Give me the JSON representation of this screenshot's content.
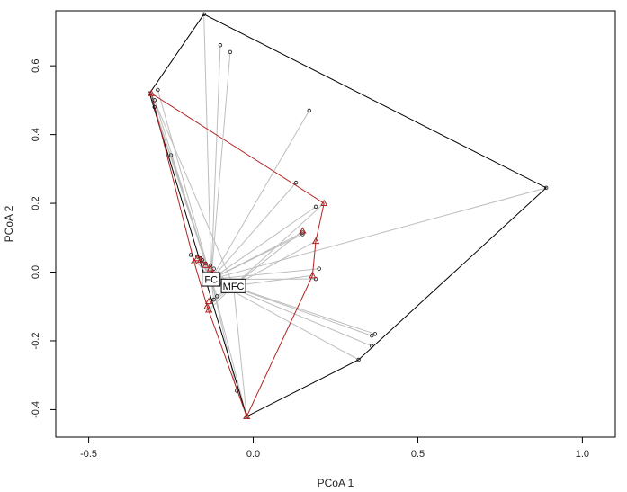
{
  "chart_data": {
    "type": "scatter",
    "xlabel": "PCoA 1",
    "ylabel": "PCoA 2",
    "xlim": [
      -0.6,
      1.1
    ],
    "ylim": [
      -0.48,
      0.76
    ],
    "grid": false,
    "x_ticks": [
      -0.5,
      0.0,
      0.5,
      1.0
    ],
    "x_tick_labels": [
      "-0.5",
      "0.0",
      "0.5",
      "1.0"
    ],
    "y_ticks": [
      -0.4,
      -0.2,
      0.0,
      0.2,
      0.4,
      0.6
    ],
    "y_tick_labels": [
      "-0.4",
      "-0.2",
      "0.0",
      "0.2",
      "0.4",
      "0.6"
    ],
    "series": [
      {
        "name": "FC",
        "color": "#000000",
        "centroid": [
          -0.128,
          -0.021
        ],
        "hull": [
          [
            -0.15,
            0.75
          ],
          [
            0.89,
            0.245
          ],
          [
            0.32,
            -0.255
          ],
          [
            -0.02,
            -0.42
          ],
          [
            -0.315,
            0.52
          ]
        ],
        "points": [
          [
            -0.15,
            0.75
          ],
          [
            -0.1,
            0.66
          ],
          [
            -0.07,
            0.64
          ],
          [
            0.17,
            0.47
          ],
          [
            -0.315,
            0.52
          ],
          [
            -0.29,
            0.53
          ],
          [
            -0.3,
            0.5
          ],
          [
            -0.3,
            0.48
          ],
          [
            -0.25,
            0.34
          ],
          [
            0.13,
            0.26
          ],
          [
            0.19,
            0.19
          ],
          [
            0.15,
            0.115
          ],
          [
            0.15,
            0.11
          ],
          [
            0.2,
            0.01
          ],
          [
            0.19,
            -0.02
          ],
          [
            0.89,
            0.245
          ],
          [
            0.37,
            -0.18
          ],
          [
            0.36,
            -0.185
          ],
          [
            0.36,
            -0.215
          ],
          [
            0.32,
            -0.255
          ],
          [
            -0.05,
            -0.345
          ],
          [
            -0.02,
            -0.42
          ],
          [
            -0.17,
            0.045
          ],
          [
            -0.16,
            0.04
          ],
          [
            -0.155,
            0.035
          ],
          [
            -0.145,
            0.025
          ],
          [
            -0.13,
            0.02
          ],
          [
            -0.12,
            0.01
          ],
          [
            -0.19,
            0.05
          ],
          [
            -0.12,
            -0.08
          ],
          [
            -0.11,
            -0.07
          ]
        ]
      },
      {
        "name": "MFC",
        "color": "#b22222",
        "centroid": [
          -0.06,
          -0.04
        ],
        "hull": [
          [
            -0.31,
            0.52
          ],
          [
            0.215,
            0.2
          ],
          [
            0.19,
            0.09
          ],
          [
            0.18,
            -0.01
          ],
          [
            -0.02,
            -0.42
          ],
          [
            -0.14,
            -0.1
          ],
          [
            -0.18,
            0.03
          ]
        ],
        "points": [
          [
            -0.31,
            0.52
          ],
          [
            0.215,
            0.2
          ],
          [
            0.19,
            0.09
          ],
          [
            0.15,
            0.12
          ],
          [
            0.18,
            -0.01
          ],
          [
            -0.02,
            -0.42
          ],
          [
            -0.14,
            -0.1
          ],
          [
            -0.135,
            -0.085
          ],
          [
            -0.18,
            0.03
          ],
          [
            -0.17,
            0.04
          ],
          [
            -0.16,
            0.035
          ],
          [
            -0.145,
            0.02
          ],
          [
            -0.13,
            0.01
          ],
          [
            -0.125,
            -0.005
          ],
          [
            -0.135,
            -0.11
          ]
        ]
      }
    ]
  }
}
